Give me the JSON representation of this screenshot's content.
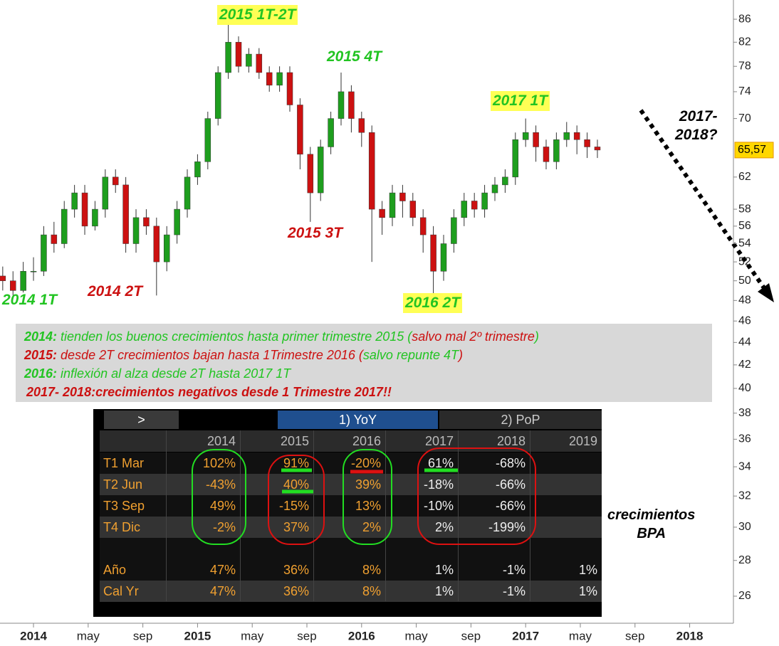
{
  "chart_data": {
    "type": "candlestick",
    "x": [
      -2.25,
      -1.5,
      -0.75,
      0,
      0.75,
      1.5,
      2.25,
      3,
      3.75,
      4.5,
      5.25,
      6,
      6.75,
      7.5,
      8.25,
      9,
      9.75,
      10.5,
      11.25,
      12,
      12.75,
      13.5,
      14.25,
      15,
      15.75,
      16.5,
      17.25,
      18,
      18.75,
      19.5,
      20.25,
      21,
      21.75,
      22.5,
      23.25,
      24,
      24.75,
      25.5,
      26.25,
      27,
      27.75,
      28.5,
      29.25,
      30,
      30.75,
      31.5,
      32.25,
      33,
      33.75,
      34.5,
      35.25,
      36,
      36.75,
      37.5,
      38.25,
      39,
      39.75,
      40.5,
      41.25
    ],
    "open": [
      50.5,
      50,
      49,
      51,
      51,
      55,
      54,
      58,
      60,
      56,
      58,
      62,
      61,
      54,
      57,
      56,
      52,
      55,
      58,
      62,
      64,
      70,
      77,
      82,
      78,
      80,
      77,
      75,
      77,
      72,
      65,
      60,
      66,
      70,
      74,
      70,
      68,
      58,
      57,
      60,
      59,
      57,
      55,
      51,
      54,
      57,
      59,
      58,
      60,
      61,
      62,
      67,
      68,
      66,
      64,
      67,
      68,
      67,
      66
    ],
    "high": [
      51.5,
      51,
      52,
      52.5,
      56,
      56.5,
      59,
      61,
      61,
      59,
      63,
      63,
      62,
      58,
      58,
      57,
      56,
      59,
      63,
      65,
      71,
      78,
      85,
      83,
      81,
      81,
      78,
      78,
      78,
      73,
      66,
      67,
      71,
      77,
      75,
      71,
      69,
      59,
      61,
      61,
      60,
      58,
      56,
      55,
      58,
      60,
      60,
      61,
      62,
      63,
      68,
      70,
      69,
      67,
      68,
      69.5,
      69,
      68,
      67
    ],
    "low": [
      49,
      48.5,
      48.8,
      50,
      50.5,
      53,
      53.5,
      57,
      55,
      55.5,
      57,
      60,
      53,
      53,
      55,
      48.5,
      51,
      54,
      57,
      61,
      63,
      69,
      76,
      77,
      77,
      76,
      74,
      74,
      71,
      63,
      56.5,
      59,
      65,
      69,
      68,
      66,
      52,
      55,
      56,
      57,
      56,
      53,
      48.3,
      50,
      53,
      56,
      57,
      57,
      59,
      60,
      61,
      66,
      64,
      63,
      63,
      66,
      65,
      64.5,
      64.5
    ],
    "close": [
      50,
      49,
      51,
      51,
      55,
      54,
      58,
      60,
      56,
      58,
      62,
      61,
      54,
      57,
      56,
      52,
      55,
      58,
      62,
      64,
      70,
      77,
      82,
      78,
      80,
      77,
      75,
      77,
      72,
      65,
      60,
      66,
      70,
      74,
      70,
      68,
      58,
      57,
      60,
      59,
      57,
      55,
      51,
      54,
      57,
      59,
      58,
      60,
      61,
      62,
      67,
      68,
      66,
      64,
      67,
      68,
      67,
      66,
      65.57
    ],
    "up_color": "#1e9e1e",
    "down_color": "#cc1111",
    "xlim": [
      -2.45,
      51.2
    ],
    "xticks": [
      {
        "value": 0,
        "label": "2014"
      },
      {
        "value": 4,
        "label": "may"
      },
      {
        "value": 8,
        "label": "sep"
      },
      {
        "value": 12,
        "label": "2015"
      },
      {
        "value": 16,
        "label": "may"
      },
      {
        "value": 20,
        "label": "sep"
      },
      {
        "value": 24,
        "label": "2016"
      },
      {
        "value": 28,
        "label": "may"
      },
      {
        "value": 32,
        "label": "sep"
      },
      {
        "value": 36,
        "label": "2017"
      },
      {
        "value": 40,
        "label": "may"
      },
      {
        "value": 44,
        "label": "sep"
      },
      {
        "value": 48,
        "label": "2018"
      }
    ],
    "ylim": [
      24.8,
      89.5
    ],
    "log_scale": true,
    "yticks": [
      86,
      82,
      78,
      74,
      70,
      62,
      58,
      56,
      54,
      52,
      50,
      48,
      46,
      44,
      42,
      40,
      38,
      36,
      34,
      32,
      30,
      28,
      26
    ],
    "last_price": {
      "value": 65.57,
      "label": "65,57"
    },
    "annotations": [
      "2015 1T-2T",
      "2015 4T",
      "2017 1T",
      "2014 1T",
      "2014 2T",
      "2015 3T",
      "2016 2T",
      "2017-\n2018?"
    ]
  },
  "notes": [
    [
      "2014:",
      " tienden los buenos crecimientos hasta primer trimestre 2015 (",
      "salvo mal 2º trimestre",
      ")"
    ],
    [
      "2015:",
      " desde 2T crecimientos bajan hasta 1Trimestre 2016 (",
      "salvo repunte 4T",
      ")"
    ],
    [
      "2016:",
      " inflexión al alza desde 2T hasta 2017 1T"
    ],
    [
      "2017- 2018:crecimientos negativos desde 1 Trimestre 2017!!"
    ]
  ],
  "table": {
    "tabs": [
      ">",
      "1) YoY",
      "2) PoP"
    ],
    "columns": [
      "2014",
      "2015",
      "2016",
      "2017",
      "2018",
      "2019"
    ],
    "quarters": [
      {
        "label": "T1 Mar",
        "cells": [
          "102%",
          "91%",
          "-20%",
          "61%",
          "-68%",
          null
        ]
      },
      {
        "label": "T2 Jun",
        "cells": [
          "-43%",
          "40%",
          "39%",
          "-18%",
          "-66%",
          null
        ]
      },
      {
        "label": "T3 Sep",
        "cells": [
          "49%",
          "-15%",
          "13%",
          "-10%",
          "-66%",
          null
        ]
      },
      {
        "label": "T4 Dic",
        "cells": [
          "-2%",
          "37%",
          "2%",
          "2%",
          "-199%",
          null
        ]
      }
    ],
    "totals": [
      {
        "label": "Año",
        "cells": [
          "47%",
          "36%",
          "8%",
          "1%",
          "-1%",
          "1%"
        ]
      },
      {
        "label": "Cal Yr",
        "cells": [
          "47%",
          "36%",
          "8%",
          "1%",
          "-1%",
          "1%"
        ]
      }
    ]
  },
  "side_note": "crecimientos\nBPA"
}
